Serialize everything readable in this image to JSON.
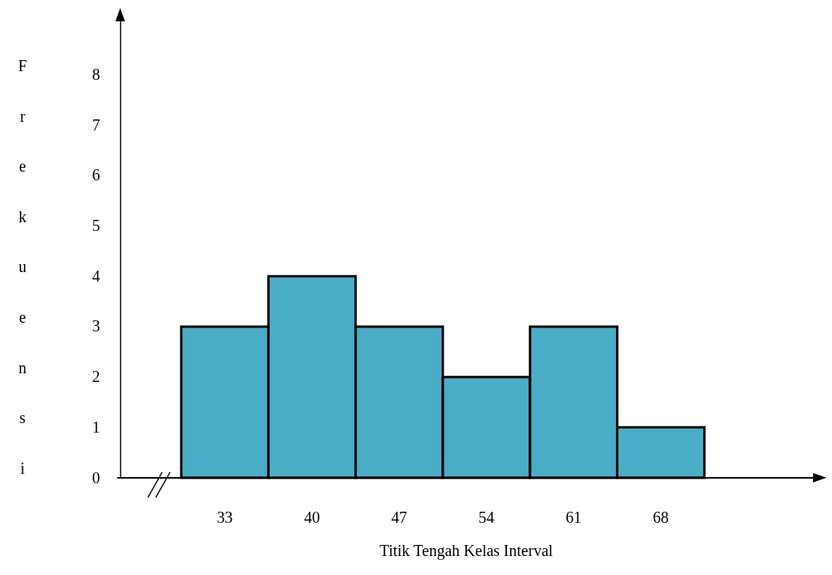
{
  "chart_data": {
    "type": "bar",
    "xlabel": "Titik Tengah Kelas Interval",
    "ylabel": "Frekuensi",
    "categories": [
      "33",
      "40",
      "47",
      "54",
      "61",
      "68"
    ],
    "values": [
      3,
      4,
      3,
      2,
      3,
      1
    ],
    "color": "#4bacc6",
    "ylim": [
      0,
      9.25
    ],
    "yticks": [
      0,
      1,
      2,
      3,
      4,
      5,
      6,
      7,
      8
    ]
  }
}
